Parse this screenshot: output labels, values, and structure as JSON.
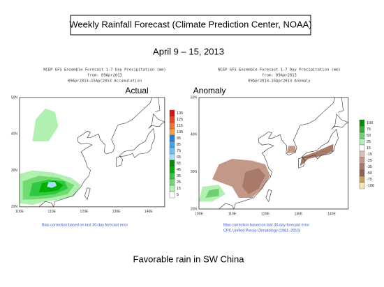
{
  "header": {
    "title": "Weekly Rainfall Forecast (Climate Prediction Center, NOAA)",
    "date": "April 9 – 15, 2013"
  },
  "panels": [
    {
      "label": "Actual",
      "header_lines": [
        "NCEP GFS Ensemble Forecast 1-7 Day Precipitation (mm)",
        "from: 09Apr2013",
        "09Apr2013–15Apr2013 Accumulation"
      ],
      "lat_labels": [
        "50N",
        "40N",
        "30N",
        "20N"
      ],
      "lon_labels": [
        "100E",
        "110E",
        "120E",
        "130E",
        "140E"
      ],
      "colorbar": [
        {
          "label": "135",
          "color": "#e01010"
        },
        {
          "label": "125",
          "color": "#f04020"
        },
        {
          "label": "115",
          "color": "#f87030"
        },
        {
          "label": "105",
          "color": "#f8a040"
        },
        {
          "label": "95",
          "color": "#2080e0"
        },
        {
          "label": "85",
          "color": "#40a0f0"
        },
        {
          "label": "75",
          "color": "#70c0f8"
        },
        {
          "label": "65",
          "color": "#a8e0ff"
        },
        {
          "label": "55",
          "color": "#009000"
        },
        {
          "label": "45",
          "color": "#00b000"
        },
        {
          "label": "35",
          "color": "#30c840"
        },
        {
          "label": "25",
          "color": "#70dc70"
        },
        {
          "label": "15",
          "color": "#b0f0b0"
        },
        {
          "label": "5",
          "color": "#ffffff"
        }
      ],
      "footnote_lines": [
        "Bias correction based on last 30-day forecast error"
      ]
    },
    {
      "label": "Anomaly",
      "header_lines": [
        "NCEP GFS Ensemble Forecast 1-7 Day Precipitation (mm)",
        "from: 09Apr2013",
        "09Apr2013–15Apr2013 Anomaly"
      ],
      "lat_labels": [
        "50N",
        "40N",
        "30N",
        "20N"
      ],
      "lon_labels": [
        "100E",
        "110E",
        "120E",
        "130E",
        "140E"
      ],
      "colorbar": [
        {
          "label": "100",
          "color": "#009000"
        },
        {
          "label": "75",
          "color": "#30b030"
        },
        {
          "label": "50",
          "color": "#70d070"
        },
        {
          "label": "25",
          "color": "#b0f0b0"
        },
        {
          "label": "15",
          "color": "#ffffff"
        },
        {
          "label": "-15",
          "color": "#dcc0b8"
        },
        {
          "label": "-25",
          "color": "#c49888"
        },
        {
          "label": "-35",
          "color": "#a87868"
        },
        {
          "label": "-50",
          "color": "#906050"
        },
        {
          "label": "-75",
          "color": "#c8a058"
        },
        {
          "label": "-100",
          "color": "#f4e8b0"
        }
      ],
      "footnote_lines": [
        "Bias correction based on last 30-day forecast error",
        "CPC Unified Precip Climatology (1981–2010)"
      ]
    }
  ],
  "caption": "Favorable rain in SW China"
}
